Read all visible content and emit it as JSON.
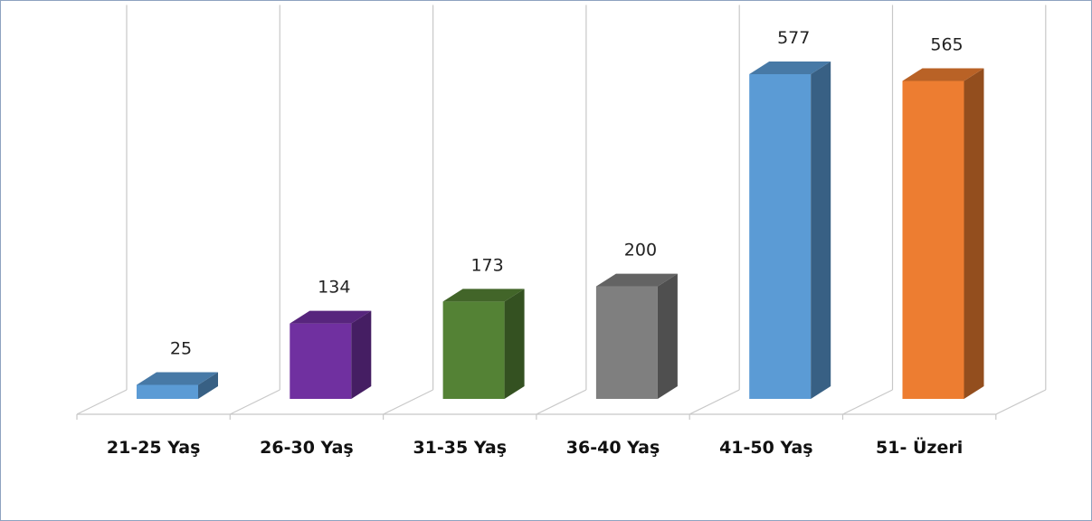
{
  "chart_data": {
    "type": "bar",
    "title": "",
    "xlabel": "",
    "ylabel": "",
    "categories": [
      "21-25 Yaş",
      "26-30 Yaş",
      "31-35 Yaş",
      "36-40 Yaş",
      "41-50 Yaş",
      "51- Üzeri"
    ],
    "values": [
      25,
      134,
      173,
      200,
      577,
      565
    ],
    "ylim": [
      0,
      700
    ],
    "grid": true,
    "legend": "none",
    "style": "3d-column",
    "colors": [
      "#5b9bd5",
      "#7030a0",
      "#548235",
      "#7f7f7f",
      "#5b9bd5",
      "#ed7d31"
    ]
  }
}
